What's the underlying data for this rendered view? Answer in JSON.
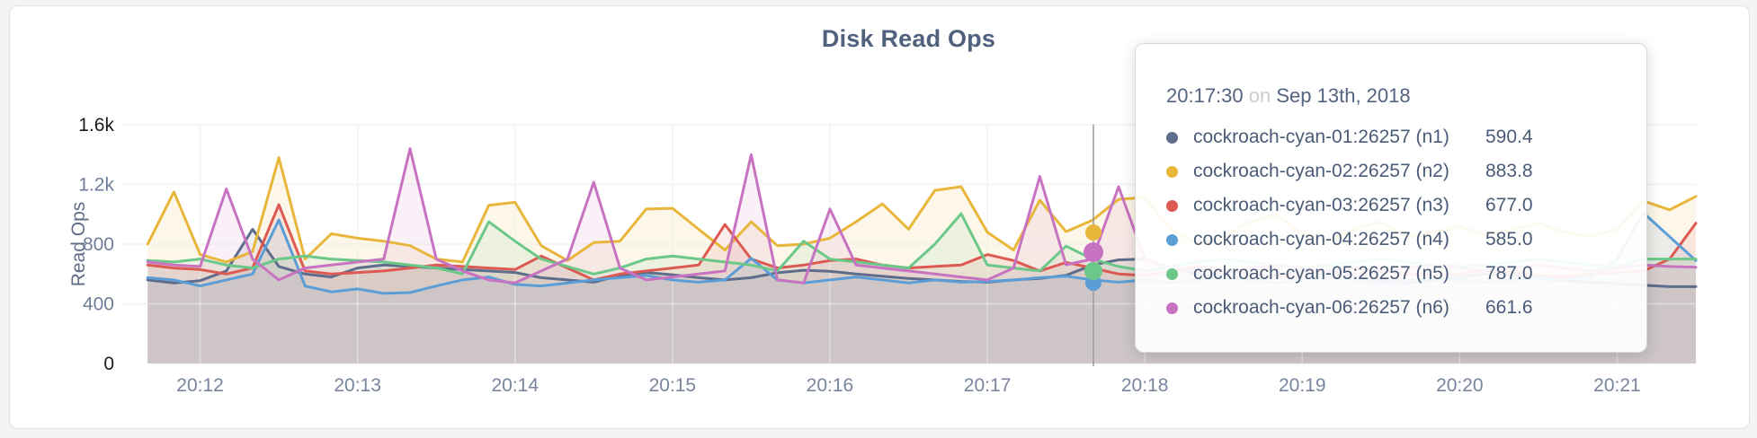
{
  "page": {
    "title": "Disk Read Ops"
  },
  "tooltip": {
    "time": "20:17:30",
    "on_word": "on",
    "date": "Sep 13th, 2018",
    "rows": [
      {
        "label": "cockroach-cyan-01:26257 (n1)",
        "value": "590.4",
        "color": "#5e6d8c"
      },
      {
        "label": "cockroach-cyan-02:26257 (n2)",
        "value": "883.8",
        "color": "#e9b63c"
      },
      {
        "label": "cockroach-cyan-03:26257 (n3)",
        "value": "677.0",
        "color": "#dc5a52"
      },
      {
        "label": "cockroach-cyan-04:26257 (n4)",
        "value": "585.0",
        "color": "#5b9ed7"
      },
      {
        "label": "cockroach-cyan-05:26257 (n5)",
        "value": "787.0",
        "color": "#6cc888"
      },
      {
        "label": "cockroach-cyan-06:26257 (n6)",
        "value": "661.6",
        "color": "#c873c1"
      }
    ]
  },
  "chart_data": {
    "type": "line",
    "title": "Disk Read Ops",
    "xlabel": "",
    "ylabel": "Read Ops",
    "ylim": [
      0,
      1600
    ],
    "grid": true,
    "legend_position": "tooltip",
    "x_start_time": "20:11:40",
    "x_interval_seconds": 10,
    "x_ticks": [
      "20:12",
      "20:13",
      "20:14",
      "20:15",
      "20:16",
      "20:17",
      "20:18",
      "20:19",
      "20:20",
      "20:21"
    ],
    "y_ticks": [
      {
        "label": "0",
        "value": 0,
        "emphasis": true
      },
      {
        "label": "400",
        "value": 400,
        "emphasis": false
      },
      {
        "label": "800",
        "value": 800,
        "emphasis": false
      },
      {
        "label": "1.2k",
        "value": 1200,
        "emphasis": false
      },
      {
        "label": "1.6k",
        "value": 1600,
        "emphasis": true
      }
    ],
    "hover": {
      "time": "20:17:30",
      "date": "Sep 13th, 2018"
    },
    "series": [
      {
        "name": "cockroach-cyan-01:26257 (n1)",
        "color": "#5e6d8c",
        "hover_value": 590.4,
        "values": [
          560,
          540,
          555,
          620,
          900,
          650,
          600,
          580,
          640,
          660,
          650,
          640,
          630,
          620,
          610,
          575,
          560,
          545,
          590,
          610,
          595,
          575,
          560,
          575,
          608,
          625,
          618,
          600,
          585,
          570,
          560,
          550,
          545,
          560,
          570,
          590.4,
          660,
          695,
          700,
          640,
          600,
          580,
          560,
          590,
          620,
          600,
          580,
          560,
          540,
          560,
          580,
          600,
          590,
          570,
          555,
          545,
          535,
          525,
          515,
          515
        ]
      },
      {
        "name": "cockroach-cyan-02:26257 (n2)",
        "color": "#e9b63c",
        "hover_value": 883.8,
        "values": [
          800,
          1150,
          730,
          680,
          750,
          1380,
          700,
          870,
          840,
          820,
          790,
          700,
          680,
          1060,
          1080,
          790,
          690,
          810,
          820,
          1035,
          1040,
          900,
          760,
          950,
          790,
          800,
          840,
          950,
          1070,
          900,
          1160,
          1185,
          880,
          760,
          1094,
          883.8,
          960,
          1100,
          1113,
          900,
          800,
          850,
          950,
          1000,
          870,
          820,
          900,
          950,
          850,
          880,
          920,
          860,
          900,
          940,
          880,
          850,
          900,
          1090,
          1030,
          1120
        ]
      },
      {
        "name": "cockroach-cyan-03:26257 (n3)",
        "color": "#dc5a52",
        "hover_value": 677.0,
        "values": [
          660,
          640,
          630,
          600,
          640,
          1064,
          620,
          600,
          610,
          620,
          640,
          660,
          650,
          640,
          630,
          720,
          640,
          560,
          600,
          620,
          640,
          660,
          932,
          700,
          640,
          660,
          690,
          700,
          660,
          640,
          650,
          660,
          730,
          690,
          620,
          677,
          640,
          600,
          590,
          620,
          650,
          630,
          600,
          580,
          600,
          620,
          640,
          620,
          600,
          590,
          600,
          620,
          610,
          590,
          580,
          600,
          610,
          620,
          700,
          940
        ]
      },
      {
        "name": "cockroach-cyan-04:26257 (n4)",
        "color": "#5b9ed7",
        "hover_value": 585.0,
        "values": [
          575,
          560,
          520,
          560,
          600,
          962,
          520,
          480,
          500,
          470,
          475,
          520,
          560,
          580,
          530,
          520,
          540,
          560,
          575,
          590,
          560,
          545,
          560,
          705,
          560,
          540,
          560,
          580,
          560,
          540,
          560,
          545,
          550,
          560,
          575,
          585,
          560,
          545,
          560,
          540,
          560,
          580,
          560,
          540,
          560,
          580,
          560,
          540,
          555,
          570,
          560,
          545,
          560,
          575,
          560,
          580,
          700,
          1010,
          850,
          690
        ]
      },
      {
        "name": "cockroach-cyan-05:26257 (n5)",
        "color": "#6cc888",
        "hover_value": 787.0,
        "values": [
          690,
          680,
          700,
          660,
          640,
          700,
          720,
          700,
          690,
          680,
          660,
          640,
          601,
          950,
          820,
          700,
          650,
          600,
          640,
          700,
          720,
          700,
          680,
          660,
          620,
          820,
          700,
          680,
          660,
          640,
          800,
          1004,
          660,
          640,
          620,
          787,
          700,
          650,
          620,
          650,
          680,
          700,
          680,
          660,
          640,
          660,
          680,
          700,
          680,
          660,
          650,
          660,
          680,
          700,
          680,
          660,
          650,
          700,
          700,
          700
        ]
      },
      {
        "name": "cockroach-cyan-06:26257 (n6)",
        "color": "#c873c1",
        "hover_value": 661.6,
        "values": [
          680,
          660,
          650,
          1170,
          700,
          560,
          640,
          660,
          680,
          700,
          1440,
          700,
          620,
          560,
          540,
          620,
          700,
          1215,
          640,
          560,
          580,
          600,
          620,
          1400,
          560,
          540,
          1035,
          660,
          640,
          620,
          600,
          580,
          560,
          640,
          1253,
          661.6,
          700,
          1185,
          700,
          640,
          620,
          600,
          640,
          660,
          640,
          620,
          600,
          620,
          640,
          660,
          640,
          620,
          640,
          660,
          640,
          620,
          640,
          660,
          650,
          645
        ]
      }
    ]
  }
}
